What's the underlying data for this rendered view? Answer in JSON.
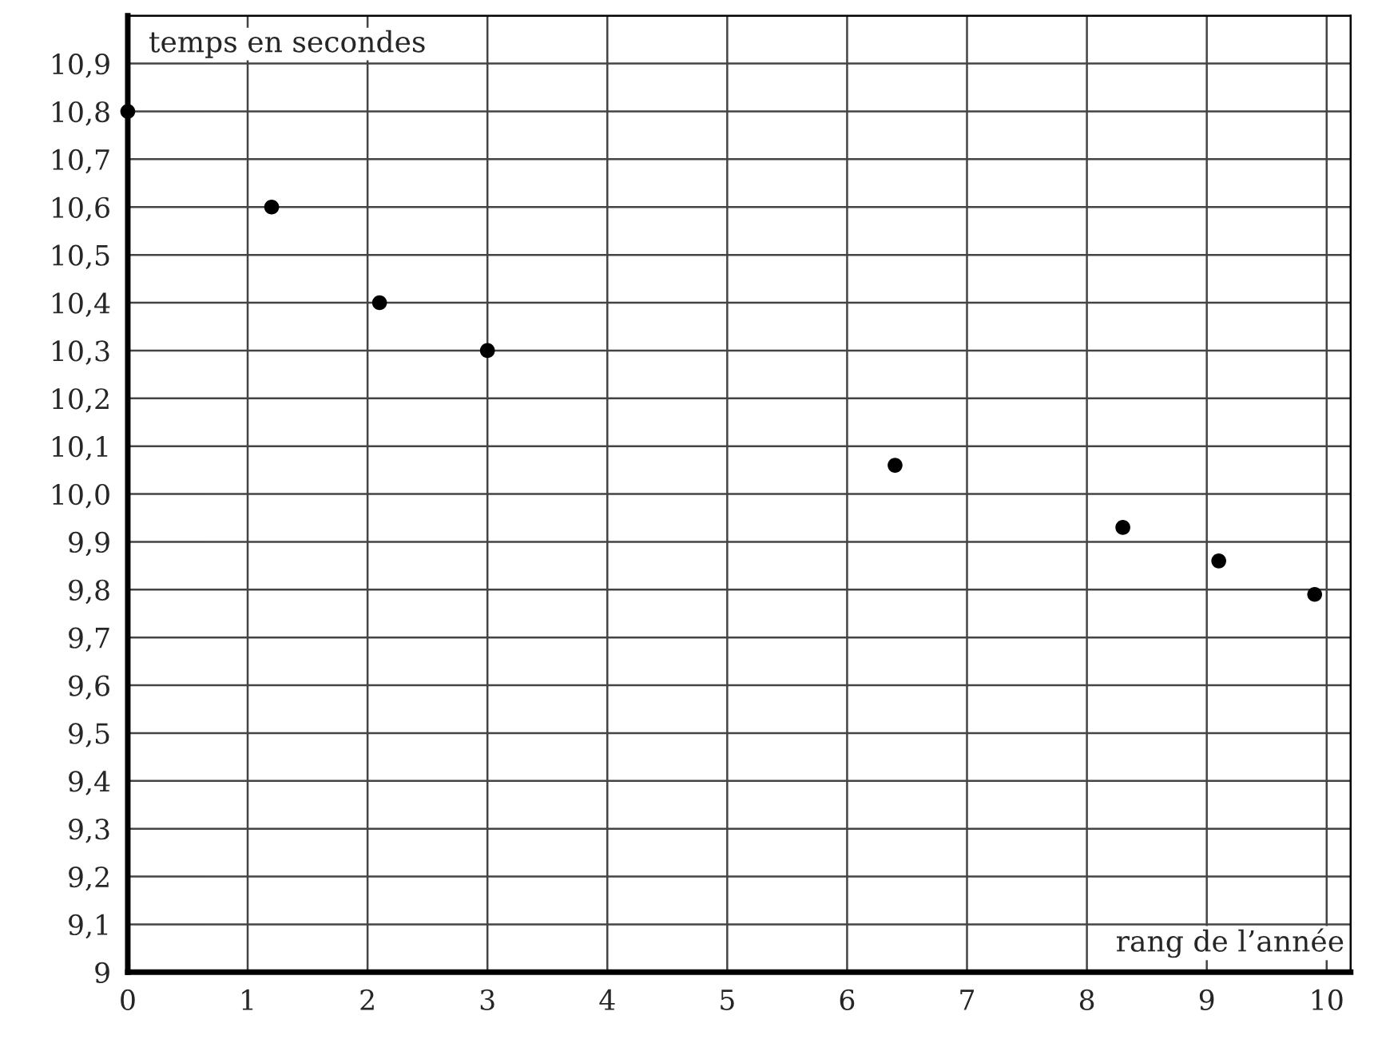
{
  "chart_data": {
    "type": "scatter",
    "xlabel": "rang de l’année",
    "ylabel": "temps en secondes",
    "x": [
      0,
      1.2,
      2.1,
      3.0,
      6.4,
      8.3,
      9.1,
      9.9
    ],
    "values": [
      10.8,
      10.6,
      10.4,
      10.3,
      10.06,
      9.93,
      9.86,
      9.79
    ],
    "color": "#000000",
    "marker": "circle",
    "xlim": [
      0,
      10.2
    ],
    "ylim": [
      9,
      11.0
    ],
    "xticks": [
      0,
      1,
      2,
      3,
      4,
      5,
      6,
      7,
      8,
      9,
      10
    ],
    "yticks": [
      9,
      {
        "value": 9.1,
        "label": "9,1"
      },
      {
        "value": 9.2,
        "label": "9,2"
      },
      {
        "value": 9.3,
        "label": "9,3"
      },
      {
        "value": 9.4,
        "label": "9,4"
      },
      {
        "value": 9.5,
        "label": "9,5"
      },
      {
        "value": 9.6,
        "label": "9,6"
      },
      {
        "value": 9.7,
        "label": "9,7"
      },
      {
        "value": 9.8,
        "label": "9,8"
      },
      {
        "value": 9.9,
        "label": "9,9"
      },
      {
        "value": 10.0,
        "label": "10,0"
      },
      {
        "value": 10.1,
        "label": "10,1"
      },
      {
        "value": 10.2,
        "label": "10,2"
      },
      {
        "value": 10.3,
        "label": "10,3"
      },
      {
        "value": 10.4,
        "label": "10,4"
      },
      {
        "value": 10.5,
        "label": "10,5"
      },
      {
        "value": 10.6,
        "label": "10,6"
      },
      {
        "value": 10.7,
        "label": "10,7"
      },
      {
        "value": 10.8,
        "label": "10,8"
      },
      {
        "value": 10.9,
        "label": "10,9"
      }
    ],
    "grid": true
  }
}
